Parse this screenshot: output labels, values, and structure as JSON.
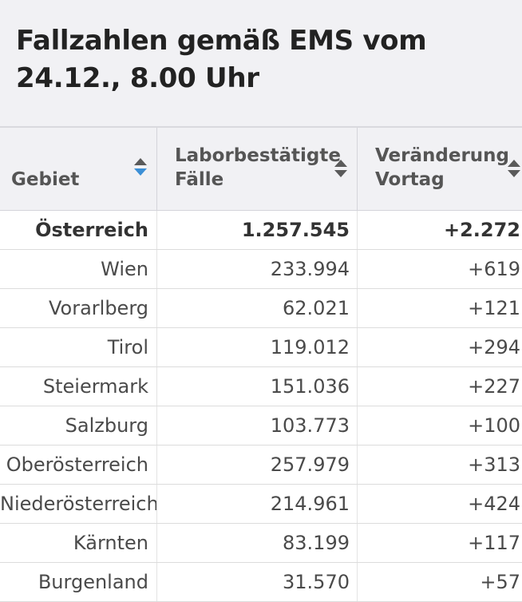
{
  "title": "Fallzahlen gemäß EMS vom 24.12., 8.00 Uhr",
  "table": {
    "headers": [
      {
        "line1": "Gebiet",
        "line2": ""
      },
      {
        "line1": "Laborbestätigte",
        "line2": "Fälle"
      },
      {
        "line1": "Veränderung",
        "line2": "Vortag"
      }
    ],
    "sort": {
      "column": "Gebiet",
      "direction": "descending",
      "active_color": "#3b8fd6"
    },
    "rows": [
      {
        "region": "Österreich",
        "cases": "1.257.545",
        "change": "+2.272",
        "total": true
      },
      {
        "region": "Wien",
        "cases": "233.994",
        "change": "+619"
      },
      {
        "region": "Vorarlberg",
        "cases": "62.021",
        "change": "+121"
      },
      {
        "region": "Tirol",
        "cases": "119.012",
        "change": "+294"
      },
      {
        "region": "Steiermark",
        "cases": "151.036",
        "change": "+227"
      },
      {
        "region": "Salzburg",
        "cases": "103.773",
        "change": "+100"
      },
      {
        "region": "Oberösterreich",
        "cases": "257.979",
        "change": "+313"
      },
      {
        "region": "Niederösterreich",
        "cases": "214.961",
        "change": "+424"
      },
      {
        "region": "Kärnten",
        "cases": "83.199",
        "change": "+117"
      },
      {
        "region": "Burgenland",
        "cases": "31.570",
        "change": "+57"
      }
    ]
  }
}
